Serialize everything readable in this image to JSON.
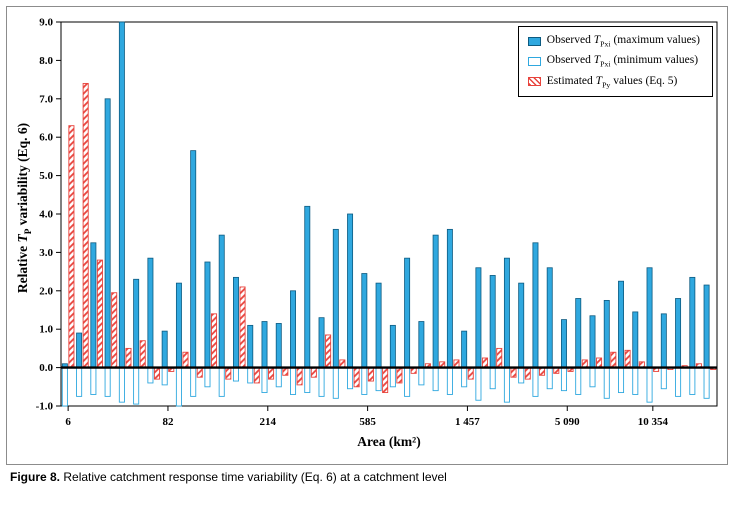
{
  "figure": {
    "caption_label": "Figure 8.",
    "caption_text": " Relative catchment response time variability (Eq. 6) at a catchment level"
  },
  "colors": {
    "blue": "#2FA8DF",
    "blue_dark": "#0C5A80",
    "red": "#E8433C",
    "black": "#000000",
    "white": "#FFFFFF"
  },
  "legend": {
    "items": [
      {
        "swatch": "solid-blue",
        "parts": [
          "Observed ",
          "T",
          "Pxi",
          " (maximum values)"
        ]
      },
      {
        "swatch": "outline-blue",
        "parts": [
          "Observed ",
          "T",
          "Pxi",
          " (minimum values)"
        ]
      },
      {
        "swatch": "hatch-red",
        "parts": [
          "Estimated ",
          "T",
          "Py",
          " values (Eq. 5)"
        ]
      }
    ]
  },
  "axes": {
    "ylabel_parts": [
      "Relative ",
      "T",
      "P",
      " variability (Eq. 6)"
    ],
    "xlabel": "Area (km²)",
    "y_tick_labels": [
      "9.0",
      "8.0",
      "7.0",
      "6.0",
      "5.0",
      "4.0",
      "3.0",
      "2.0",
      "1.0",
      "0.0",
      "-1.0"
    ]
  },
  "chart_data": {
    "type": "bar",
    "title": "",
    "xlabel": "Area (km²)",
    "ylabel": "Relative TP variability (Eq. 6)",
    "ylim": [
      -1,
      9
    ],
    "y_tick_step": 1,
    "grid": false,
    "legend_position": "top-right",
    "n_groups": 46,
    "x_tick_labels": [
      {
        "label": "6",
        "index": 0
      },
      {
        "label": "82",
        "index": 7
      },
      {
        "label": "214",
        "index": 14
      },
      {
        "label": "585",
        "index": 21
      },
      {
        "label": "1 457",
        "index": 28
      },
      {
        "label": "5 090",
        "index": 35
      },
      {
        "label": "10 354",
        "index": 41
      }
    ],
    "series": [
      {
        "name": "Observed TPxi (maximum values)",
        "values": [
          0.1,
          0.9,
          3.25,
          7.0,
          9.0,
          2.3,
          2.85,
          0.95,
          2.2,
          5.65,
          2.75,
          3.45,
          2.35,
          1.1,
          1.2,
          1.15,
          2.0,
          4.2,
          1.3,
          3.6,
          4.0,
          2.45,
          2.2,
          1.1,
          2.85,
          1.2,
          3.45,
          3.6,
          0.95,
          2.6,
          2.4,
          2.85,
          2.2,
          3.25,
          2.6,
          1.25,
          1.8,
          1.35,
          1.75,
          2.25,
          1.45,
          2.6,
          1.4,
          1.8,
          2.35,
          2.15
        ]
      },
      {
        "name": "Observed TPxi (minimum values)",
        "values": [
          -1.0,
          -0.75,
          -0.7,
          -0.75,
          -0.9,
          -0.95,
          -0.4,
          -0.45,
          -1.0,
          -0.75,
          -0.5,
          -0.75,
          -0.35,
          -0.4,
          -0.65,
          -0.5,
          -0.7,
          -0.65,
          -0.75,
          -0.8,
          -0.55,
          -0.7,
          -0.6,
          -0.5,
          -0.75,
          -0.45,
          -0.6,
          -0.7,
          -0.5,
          -0.85,
          -0.55,
          -0.9,
          -0.4,
          -0.75,
          -0.55,
          -0.6,
          -0.7,
          -0.5,
          -0.8,
          -0.65,
          -0.7,
          -0.9,
          -0.55,
          -0.75,
          -0.7,
          -0.8
        ]
      },
      {
        "name": "Estimated TPy values (Eq. 5)",
        "values": [
          6.3,
          7.4,
          2.8,
          1.95,
          0.5,
          0.7,
          -0.3,
          -0.1,
          0.4,
          -0.25,
          1.4,
          -0.3,
          2.1,
          -0.4,
          -0.3,
          -0.2,
          -0.45,
          -0.25,
          0.85,
          0.2,
          -0.5,
          -0.35,
          -0.65,
          -0.4,
          -0.15,
          0.1,
          0.15,
          0.2,
          -0.3,
          0.25,
          0.5,
          -0.25,
          -0.3,
          -0.2,
          -0.15,
          -0.1,
          0.2,
          0.25,
          0.4,
          0.45,
          0.15,
          -0.1,
          -0.05,
          0.05,
          0.1,
          -0.05
        ]
      }
    ]
  }
}
